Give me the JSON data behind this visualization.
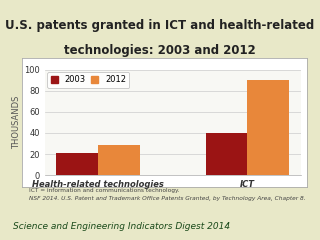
{
  "categories": [
    "Health-related technologies",
    "ICT"
  ],
  "values_2003": [
    21,
    40
  ],
  "values_2012": [
    29,
    90
  ],
  "color_2003": "#9B1414",
  "color_2012": "#E8873A",
  "title_line1": "U.S. patents granted in ICT and health-related",
  "title_line2": "technologies: 2003 and 2012",
  "ylabel": "THOUSANDS",
  "ylim": [
    0,
    100
  ],
  "yticks": [
    0,
    20,
    40,
    60,
    80,
    100
  ],
  "legend_labels": [
    "2003",
    "2012"
  ],
  "footnote1": "ICT = information and communications technology.",
  "footnote2": "NSF 2014. U.S. Patent and Trademark Office Patents Granted, by Technology Area, Chapter 8.",
  "footer_text": "Science and Engineering Indicators Digest 2014",
  "bg_outer": "#e8e8c8",
  "bg_title": "#f5f5e0",
  "bg_chart": "#f8f8f4",
  "bg_green": "#7ab640",
  "bar_width": 0.28,
  "title_fontsize": 8.5,
  "axis_fontsize": 6,
  "tick_fontsize": 6,
  "footnote_fontsize": 4.2,
  "footer_fontsize": 6.5
}
